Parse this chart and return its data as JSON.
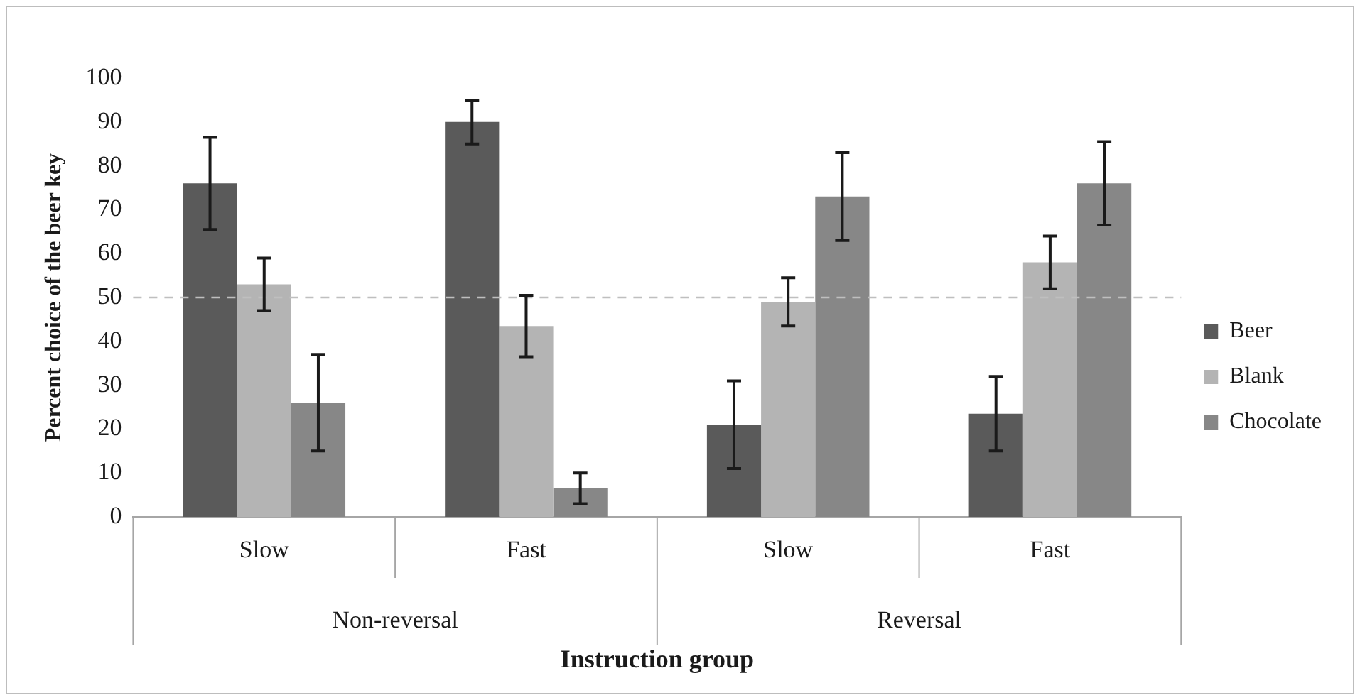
{
  "chart_data": {
    "type": "bar",
    "xlabel": "Instruction group",
    "ylabel": "Percent choice of the beer key",
    "categories": [
      "Slow",
      "Fast",
      "Slow",
      "Fast"
    ],
    "annotations": [
      "Non-reversal",
      "Reversal"
    ],
    "series": [
      {
        "name": "Beer",
        "color": "#5a5a5a",
        "values": [
          76,
          90,
          21,
          23.5
        ],
        "errors": [
          10.5,
          5,
          10,
          8.5
        ]
      },
      {
        "name": "Blank",
        "color": "#b4b4b4",
        "values": [
          53,
          43.5,
          49,
          58
        ],
        "errors": [
          6,
          7,
          5.5,
          6
        ]
      },
      {
        "name": "Chocolate",
        "color": "#878787",
        "values": [
          26,
          6.5,
          73,
          76
        ],
        "errors": [
          11,
          3.5,
          10,
          9.5
        ]
      }
    ],
    "ylim": [
      0,
      100
    ],
    "yticks": [
      0,
      10,
      20,
      30,
      40,
      50,
      60,
      70,
      80,
      90,
      100
    ],
    "ref_lines": [
      {
        "axis": "y",
        "value": 50,
        "color": "#bfbfbf",
        "line_style": "dashed"
      }
    ],
    "grid": false,
    "legend": "right"
  }
}
